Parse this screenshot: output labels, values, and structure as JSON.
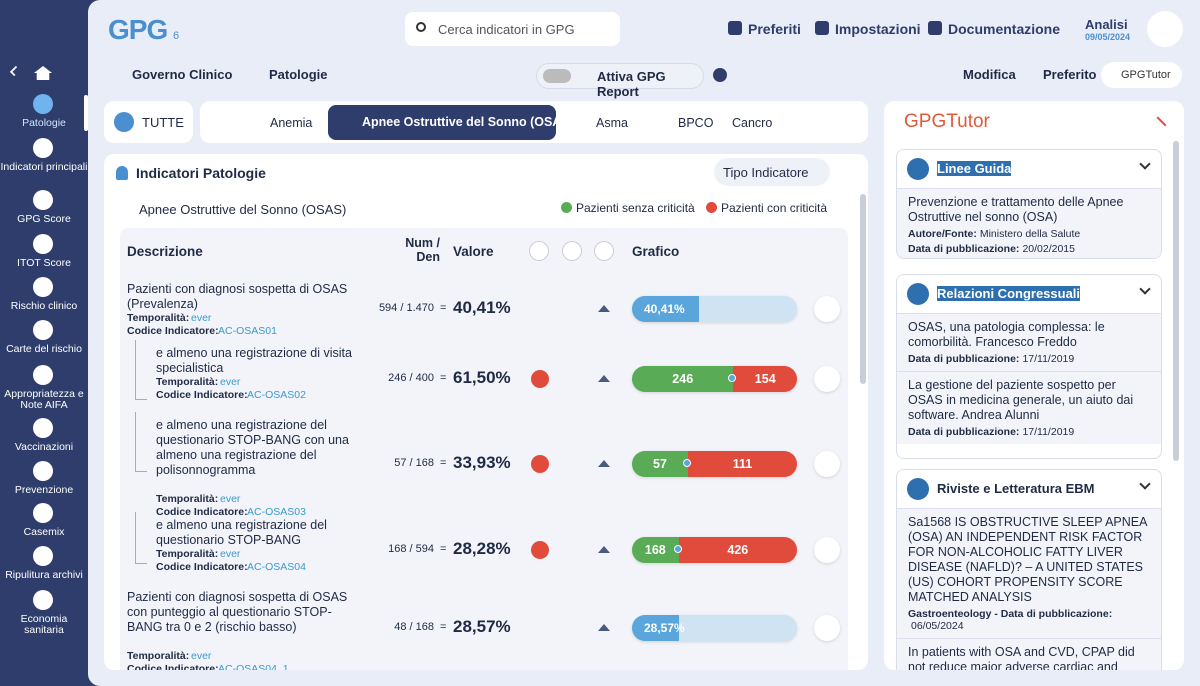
{
  "header": {
    "logo": "GPG",
    "logo_sub": "6",
    "search_placeholder": "Cerca indicatori in GPG",
    "nav": [
      "Preferiti",
      "Impostazioni",
      "Documentazione"
    ],
    "analysis_label": "Analisi",
    "analysis_date": "09/05/2024"
  },
  "sidebar": {
    "items": [
      "Patologie",
      "Indicatori principali",
      "GPG Score",
      "ITOT Score",
      "Rischio clinico",
      "Carte del rischio",
      "Appropriatezza e Note AIFA",
      "Vaccinazioni",
      "Prevenzione",
      "Casemix",
      "Ripulitura archivi",
      "Economia sanitaria"
    ]
  },
  "breadcrumb": [
    "Governo Clinico",
    "Patologie"
  ],
  "toggle_label": "Attiva GPG Report",
  "actions": [
    "Modifica",
    "Preferito"
  ],
  "tutor_badge": "GPGTutor",
  "tabs": {
    "all": "TUTTE",
    "items": [
      "Anemia",
      "Apnee Ostruttive del Sonno (OSAS)",
      "Asma",
      "BPCO",
      "Cancro"
    ]
  },
  "panel": {
    "title": "Indicatori Patologie",
    "filter": "Tipo Indicatore",
    "subtitle": "Apnee Ostruttive del Sonno (OSAS)",
    "legend": [
      "Pazienti senza criticità",
      "Pazienti con criticità"
    ],
    "columns": [
      "Descrizione",
      "Num / Den",
      "Valore",
      "Grafico"
    ],
    "temporalita_label": "Temporalità:",
    "code_label": "Codice Indicatore:",
    "equals": "=",
    "rows": [
      {
        "description": "Pazienti con diagnosi sospetta di OSAS (Prevalenza)",
        "temporalita": "ever",
        "code": "AC-OSAS01",
        "num_den": "594 / 1.470",
        "value": "40,41%",
        "bar": {
          "value": 40.41,
          "label": "40,41%"
        }
      },
      {
        "description": "e almeno una registrazione di visita specialistica",
        "temporalita": "ever",
        "code": "AC-OSAS02",
        "num_den": "246 / 400",
        "value": "61,50%",
        "segments": [
          246,
          154
        ]
      },
      {
        "description": "e almeno una registrazione del questionario STOP-BANG con una almeno una registrazione del polisonnogramma",
        "temporalita": "ever",
        "code": "AC-OSAS03",
        "num_den": "57 / 168",
        "value": "33,93%",
        "segments": [
          57,
          111
        ]
      },
      {
        "description": "e almeno una registrazione del questionario STOP-BANG",
        "temporalita": "ever",
        "code": "AC-OSAS04",
        "num_den": "168 / 594",
        "value": "28,28%",
        "segments": [
          168,
          426
        ]
      },
      {
        "description": "Pazienti con diagnosi sospetta di OSAS con punteggio al questionario STOP-BANG tra 0 e 2 (rischio basso)",
        "temporalita": "ever",
        "code": "AC-OSAS04_1",
        "num_den": "48 / 168",
        "value": "28,57%",
        "bar": {
          "value": 28.57,
          "label": "28,57%"
        }
      }
    ]
  },
  "tutor": {
    "title": "GPGTutor",
    "sections": [
      {
        "title": "Linee Guida",
        "items": [
          {
            "text": "Prevenzione e trattamento delle Apnee Ostruttive nel sonno (OSA)",
            "author_label": "Autore/Fonte:",
            "author": "Ministero della Salute",
            "date_label": "Data di pubblicazione:",
            "date": "20/02/2015"
          }
        ]
      },
      {
        "title": "Relazioni Congressuali",
        "items": [
          {
            "text": "OSAS, una patologia complessa: le comorbilità. Francesco Freddo",
            "date_label": "Data di pubblicazione:",
            "date": "17/11/2019"
          },
          {
            "text": "La gestione del paziente sospetto per OSAS in medicina generale, un aiuto dai software. Andrea Alunni",
            "date_label": "Data di pubblicazione:",
            "date": "17/11/2019"
          }
        ]
      },
      {
        "title": "Riviste e Letteratura EBM",
        "items": [
          {
            "text": "Sa1568 IS OBSTRUCTIVE SLEEP APNEA (OSA) AN INDEPENDENT RISK FACTOR FOR NON-ALCOHOLIC FATTY LIVER DISEASE (NAFLD)? – A UNITED STATES (US) COHORT PROPENSITY SCORE MATCHED ANALYSIS",
            "date_label": "Gastroenteology - Data di pubblicazione:",
            "date": "06/05/2024"
          },
          {
            "text": "In patients with OSA and CVD, CPAP did not reduce major adverse cardiac and"
          }
        ]
      }
    ]
  }
}
